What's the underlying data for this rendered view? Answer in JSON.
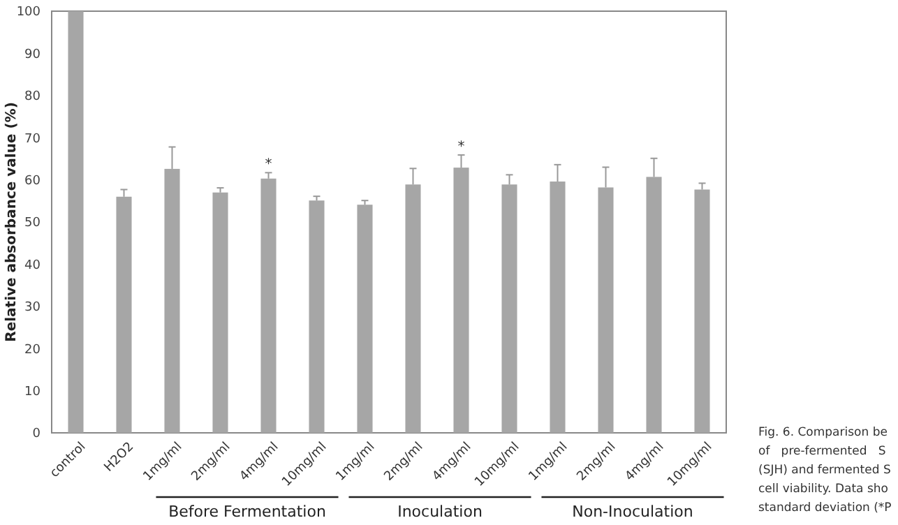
{
  "chart_data": {
    "type": "bar",
    "ylabel": "Relative absorbance value (%)",
    "categories": [
      "control",
      "H2O2",
      "1mg/ml",
      "2mg/ml",
      "4mg/ml",
      "10mg/ml",
      "1mg/ml",
      "2mg/ml",
      "4mg/ml",
      "10mg/ml",
      "1mg/ml",
      "2mg/ml",
      "4mg/ml",
      "10mg/ml"
    ],
    "values": [
      100,
      56,
      62.6,
      57,
      60.3,
      55.1,
      54.1,
      58.9,
      62.9,
      58.9,
      59.6,
      58.2,
      60.7,
      57.7
    ],
    "errors": [
      null,
      [
        56,
        57.7
      ],
      [
        62.6,
        67.8
      ],
      [
        57,
        58.1
      ],
      [
        60.3,
        61.7
      ],
      [
        55.1,
        56.1
      ],
      [
        54.1,
        55.1
      ],
      [
        58.9,
        62.7
      ],
      [
        62.9,
        65.9
      ],
      [
        58.9,
        61.2
      ],
      [
        59.6,
        63.6
      ],
      [
        58.2,
        63
      ],
      [
        60.7,
        65.1
      ],
      [
        57.7,
        59.2
      ]
    ],
    "value_labels": [
      null,
      null,
      null,
      null,
      "*",
      null,
      null,
      null,
      "*",
      null,
      null,
      null,
      null,
      null
    ],
    "color": "#a6a6a6",
    "ylim": [
      0,
      100
    ],
    "yticks": [
      0,
      10,
      20,
      30,
      40,
      50,
      60,
      70,
      80,
      90,
      100
    ],
    "grid": false,
    "annotations": [
      "Before Fermentation",
      "Inoculation",
      "Non-Inoculation",
      "Fig. 6. Comparison be\nof   pre-fermented   S\n(SJH) and fermented S\ncell viability. Data sho\nstandard deviation (*P"
    ]
  }
}
